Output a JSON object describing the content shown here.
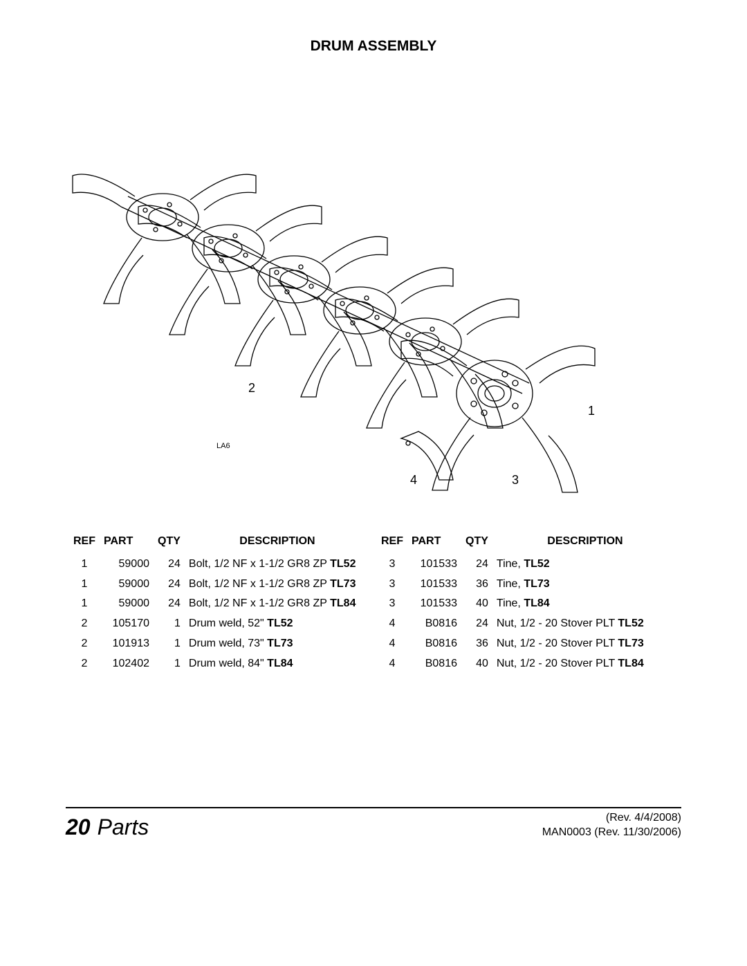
{
  "title": "DRUM ASSEMBLY",
  "diagram": {
    "label_code": "LA6",
    "callouts": {
      "c1": "1",
      "c2": "2",
      "c3": "3",
      "c4": "4"
    }
  },
  "parts_table": {
    "columns": {
      "ref": "REF",
      "part": "PART",
      "qty": "QTY",
      "desc": "DESCRIPTION"
    },
    "left": [
      {
        "ref": "1",
        "part": "59000",
        "qty": "24",
        "desc": "Bolt, 1/2 NF x 1-1/2 GR8 ZP ",
        "bold": "TL52"
      },
      {
        "ref": "1",
        "part": "59000",
        "qty": "24",
        "desc": "Bolt, 1/2 NF x 1-1/2 GR8 ZP ",
        "bold": "TL73"
      },
      {
        "ref": "1",
        "part": "59000",
        "qty": "24",
        "desc": "Bolt, 1/2 NF x 1-1/2 GR8 ZP ",
        "bold": "TL84"
      },
      {
        "ref": "2",
        "part": "105170",
        "qty": "1",
        "desc": "Drum weld, 52\" ",
        "bold": "TL52"
      },
      {
        "ref": "2",
        "part": "101913",
        "qty": "1",
        "desc": "Drum weld, 73\" ",
        "bold": "TL73"
      },
      {
        "ref": "2",
        "part": "102402",
        "qty": "1",
        "desc": "Drum weld, 84\" ",
        "bold": "TL84"
      }
    ],
    "right": [
      {
        "ref": "3",
        "part": "101533",
        "qty": "24",
        "desc": "Tine, ",
        "bold": "TL52"
      },
      {
        "ref": "3",
        "part": "101533",
        "qty": "36",
        "desc": "Tine, ",
        "bold": "TL73"
      },
      {
        "ref": "3",
        "part": "101533",
        "qty": "40",
        "desc": "Tine, ",
        "bold": "TL84"
      },
      {
        "ref": "4",
        "part": "B0816",
        "qty": "24",
        "desc": "Nut, 1/2 - 20 Stover PLT ",
        "bold": "TL52"
      },
      {
        "ref": "4",
        "part": "B0816",
        "qty": "36",
        "desc": "Nut, 1/2 - 20 Stover PLT ",
        "bold": "TL73"
      },
      {
        "ref": "4",
        "part": "B0816",
        "qty": "40",
        "desc": "Nut, 1/2 - 20 Stover PLT ",
        "bold": "TL84"
      }
    ]
  },
  "footer": {
    "page_number": "20",
    "section": "Parts",
    "rev_top": "(Rev. 4/4/2008)",
    "rev_bottom": "MAN0003 (Rev. 11/30/2006)"
  }
}
